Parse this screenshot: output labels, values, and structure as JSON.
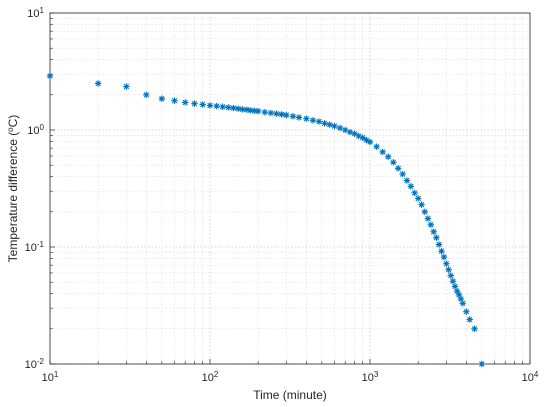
{
  "chart_data": {
    "type": "scatter",
    "title": "",
    "xlabel": "Time (minute)",
    "ylabel_parts": {
      "before": "Temperature difference (",
      "sup": "o",
      "after": "C)"
    },
    "x_scale": "log",
    "y_scale": "log",
    "xlim": [
      10,
      10000
    ],
    "ylim": [
      0.01,
      10
    ],
    "x_ticks": [
      {
        "base": "10",
        "exp": "1",
        "value": 10
      },
      {
        "base": "10",
        "exp": "2",
        "value": 100
      },
      {
        "base": "10",
        "exp": "3",
        "value": 1000
      },
      {
        "base": "10",
        "exp": "4",
        "value": 10000
      }
    ],
    "y_ticks": [
      {
        "base": "10",
        "exp": "-2",
        "value": 0.01
      },
      {
        "base": "10",
        "exp": "-1",
        "value": 0.1
      },
      {
        "base": "10",
        "exp": "0",
        "value": 1
      },
      {
        "base": "10",
        "exp": "1",
        "value": 10
      }
    ],
    "grid": true,
    "minor_grid": true,
    "marker": "asterisk",
    "color": "#0072BD",
    "series": [
      {
        "x": [
          10,
          20,
          30,
          40,
          50,
          60,
          70,
          80,
          90,
          100,
          110,
          120,
          130,
          140,
          150,
          160,
          170,
          180,
          190,
          200,
          220,
          240,
          260,
          280,
          300,
          330,
          360,
          400,
          440,
          480,
          520,
          560,
          600,
          650,
          700,
          750,
          800,
          850,
          900,
          950,
          1000,
          1100,
          1200,
          1300,
          1400,
          1500,
          1600,
          1700,
          1800,
          1900,
          2000,
          2100,
          2200,
          2300,
          2400,
          2500,
          2600,
          2700,
          2800,
          2900,
          3000,
          3100,
          3200,
          3300,
          3400,
          3500,
          3600,
          3700,
          3800,
          4000,
          4200,
          4500,
          5000
        ],
        "y": [
          2.9,
          2.5,
          2.35,
          2.0,
          1.85,
          1.78,
          1.72,
          1.68,
          1.65,
          1.62,
          1.6,
          1.58,
          1.56,
          1.54,
          1.52,
          1.5,
          1.49,
          1.47,
          1.46,
          1.45,
          1.42,
          1.4,
          1.38,
          1.36,
          1.34,
          1.31,
          1.28,
          1.25,
          1.21,
          1.18,
          1.14,
          1.11,
          1.08,
          1.04,
          1.0,
          0.96,
          0.93,
          0.89,
          0.86,
          0.82,
          0.79,
          0.72,
          0.65,
          0.59,
          0.53,
          0.47,
          0.42,
          0.37,
          0.33,
          0.29,
          0.26,
          0.23,
          0.2,
          0.175,
          0.155,
          0.135,
          0.12,
          0.105,
          0.092,
          0.082,
          0.072,
          0.064,
          0.057,
          0.051,
          0.046,
          0.042,
          0.039,
          0.036,
          0.033,
          0.028,
          0.024,
          0.02,
          0.01
        ]
      }
    ]
  }
}
